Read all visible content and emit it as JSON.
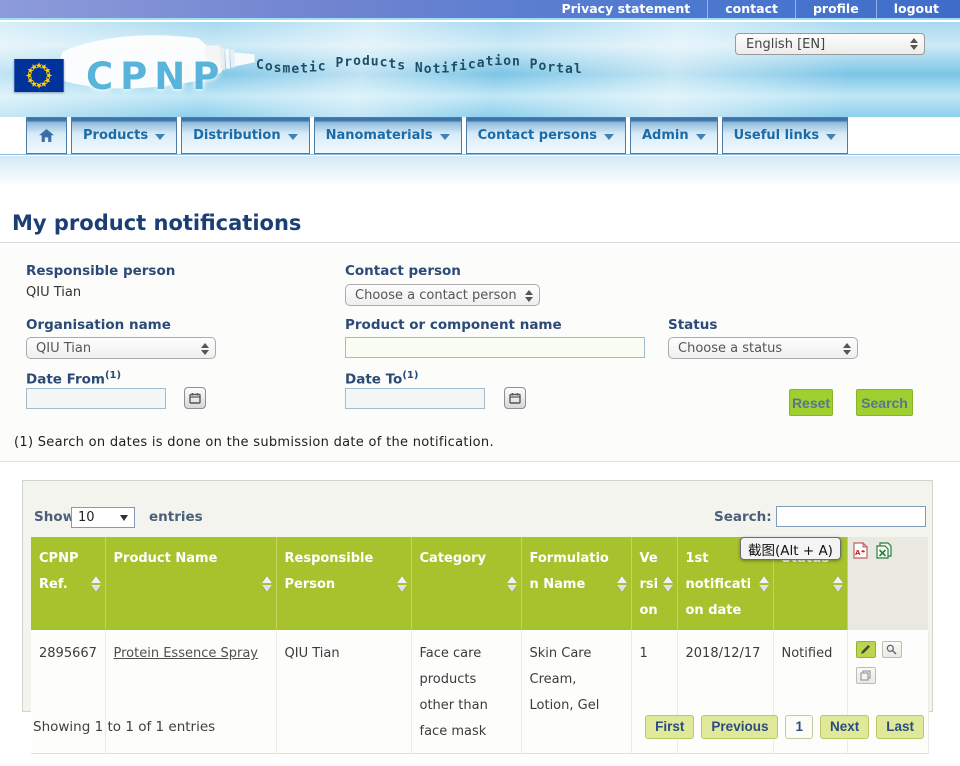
{
  "topbar": {
    "links": [
      "Privacy statement",
      "contact",
      "profile",
      "logout"
    ]
  },
  "banner": {
    "logo_text": "CPNP",
    "tagline": "Cosmetic Products Notification Portal",
    "language": "English [EN]"
  },
  "nav": {
    "items": [
      "Products",
      "Distribution",
      "Nanomaterials",
      "Contact persons",
      "Admin",
      "Useful links"
    ]
  },
  "page": {
    "title": "My product notifications"
  },
  "filters": {
    "responsible_person": {
      "label": "Responsible person",
      "value": "QIU Tian"
    },
    "contact_person": {
      "label": "Contact person",
      "selected": "Choose a contact person"
    },
    "organisation": {
      "label": "Organisation name",
      "selected": "QIU Tian"
    },
    "product_name": {
      "label": "Product or component name",
      "value": ""
    },
    "status": {
      "label": "Status",
      "selected": "Choose a status"
    },
    "date_from": {
      "label": "Date From",
      "value": ""
    },
    "date_to": {
      "label": "Date To",
      "value": ""
    },
    "footnote_marker": "(1)",
    "reset_label": "Reset",
    "search_label": "Search",
    "footnote": "(1) Search on dates is done on the submission date of the notification."
  },
  "table": {
    "show_label": "Show",
    "page_size": "10",
    "entries_label": "entries",
    "search_label": "Search:",
    "search_value": "",
    "columns": [
      "CPNP Ref.",
      "Product Name",
      "Responsible Person",
      "Category",
      "Formulation Name",
      "Version",
      "1st notification date",
      "Status"
    ],
    "rows": [
      {
        "cpnp_ref": "2895667",
        "product_name": "Protein Essence Spray",
        "responsible_person": "QIU Tian",
        "category": "Face care products other than face mask",
        "formulation_name": "Skin Care Cream, Lotion, Gel",
        "version": "1",
        "first_notification_date": "2018/12/17",
        "status": "Notified"
      }
    ],
    "summary": "Showing 1 to 1 of 1 entries",
    "pagination": {
      "first": "First",
      "previous": "Previous",
      "page": "1",
      "next": "Next",
      "last": "Last"
    }
  },
  "tooltip": {
    "text": "截图(Alt + A)"
  },
  "colors": {
    "topbar_blue": "#4e79d0",
    "banner_blue": "#8ccfec",
    "nav_text_blue": "#1b6ba6",
    "heading_navy": "#1b3e74",
    "table_header_green": "#a6c32d",
    "button_green": "#a0d030",
    "pagination_green": "#dfe999",
    "eu_flag_blue": "#003399",
    "eu_star_yellow": "#ffcc00"
  }
}
